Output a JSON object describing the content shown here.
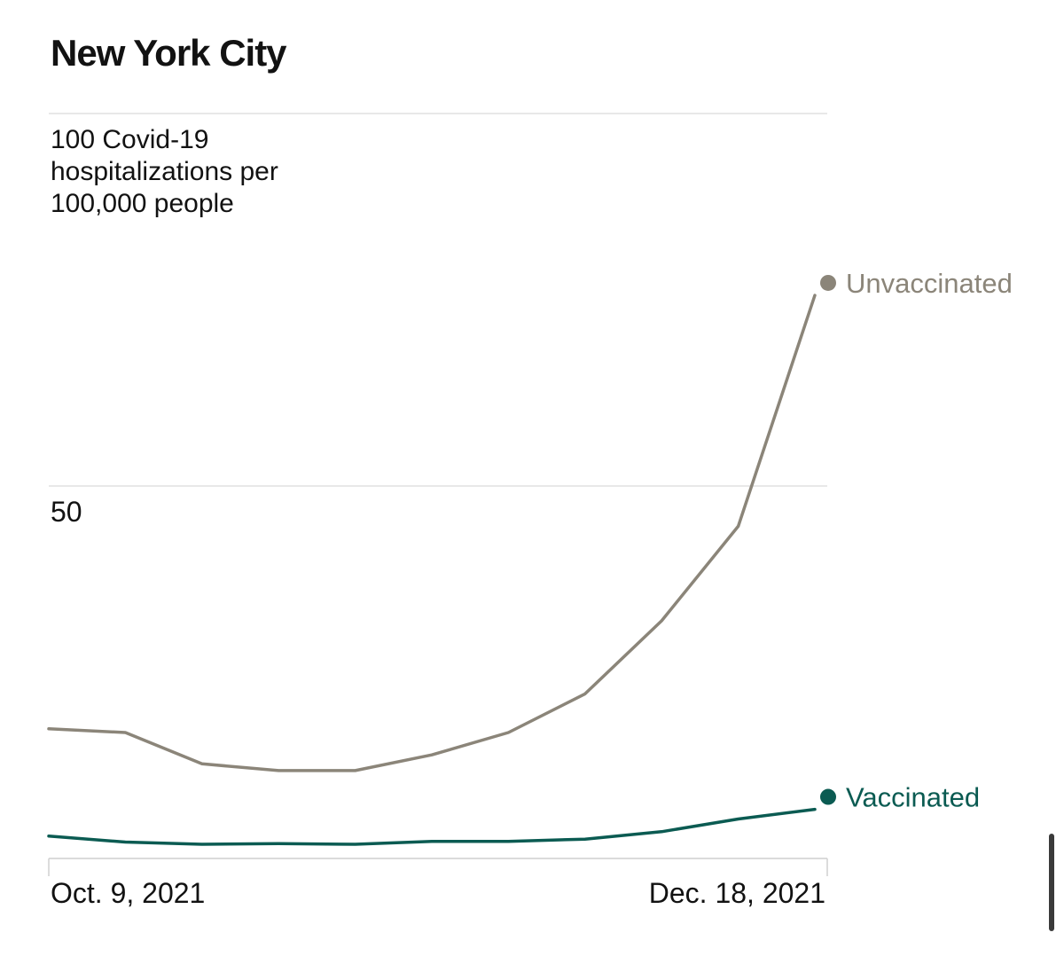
{
  "chart_data": {
    "type": "line",
    "title": "New York City",
    "ylabel": "100 Covid-19 hospitalizations per 100,000 people",
    "ylabel_lines": [
      "100 Covid-19",
      "hospitalizations per",
      "100,000 people"
    ],
    "ylim": [
      0,
      100
    ],
    "yticks": [
      {
        "value": 100,
        "label": ""
      },
      {
        "value": 50,
        "label": "50"
      },
      {
        "value": 0,
        "label": ""
      }
    ],
    "x": [
      "2021-10-09",
      "2021-10-16",
      "2021-10-23",
      "2021-10-30",
      "2021-11-06",
      "2021-11-13",
      "2021-11-20",
      "2021-11-27",
      "2021-12-04",
      "2021-12-11",
      "2021-12-18"
    ],
    "xtick_labels": [
      {
        "x": "2021-10-09",
        "label": "Oct. 9, 2021",
        "anchor": "start"
      },
      {
        "x": "2021-12-18",
        "label": "Dec. 18, 2021",
        "anchor": "end"
      }
    ],
    "grid": true,
    "legend": "direct labels at line ends",
    "series": [
      {
        "name": "Unvaccinated",
        "color": "#8b8579",
        "values": [
          17.4,
          16.9,
          12.7,
          11.8,
          11.8,
          13.9,
          16.9,
          22.1,
          31.9,
          44.6,
          75.6
        ],
        "end_marker": true
      },
      {
        "name": "Vaccinated",
        "color": "#0b5b52",
        "values": [
          3.0,
          2.2,
          1.9,
          2.0,
          1.9,
          2.3,
          2.3,
          2.6,
          3.6,
          5.3,
          6.6
        ],
        "end_marker": true
      }
    ]
  }
}
